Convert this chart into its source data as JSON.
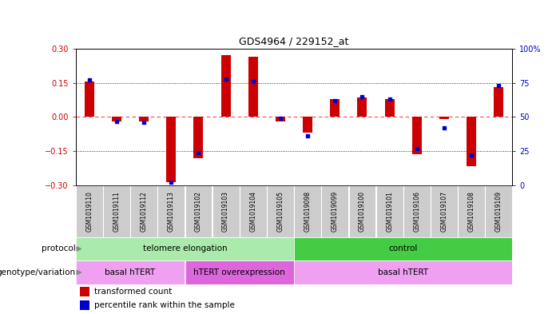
{
  "title": "GDS4964 / 229152_at",
  "samples": [
    "GSM1019110",
    "GSM1019111",
    "GSM1019112",
    "GSM1019113",
    "GSM1019102",
    "GSM1019103",
    "GSM1019104",
    "GSM1019105",
    "GSM1019098",
    "GSM1019099",
    "GSM1019100",
    "GSM1019101",
    "GSM1019106",
    "GSM1019107",
    "GSM1019108",
    "GSM1019109"
  ],
  "bar_values": [
    0.155,
    -0.02,
    -0.02,
    -0.285,
    -0.18,
    0.27,
    0.265,
    -0.02,
    -0.07,
    0.08,
    0.085,
    0.08,
    -0.165,
    -0.01,
    -0.215,
    0.13
  ],
  "percentile_values": [
    77,
    47,
    46,
    2,
    24,
    78,
    76,
    49,
    36,
    62,
    65,
    63,
    27,
    42,
    22,
    73
  ],
  "ylim_left": [
    -0.3,
    0.3
  ],
  "ylim_right": [
    0,
    100
  ],
  "yticks_left": [
    -0.3,
    -0.15,
    0,
    0.15,
    0.3
  ],
  "yticks_right": [
    0,
    25,
    50,
    75,
    100
  ],
  "ytick_labels_right": [
    "0",
    "25",
    "50",
    "75",
    "100%"
  ],
  "hline_dotted_values": [
    0.15,
    -0.15
  ],
  "hline_zero_color": "#ff4444",
  "bar_color": "#cc0000",
  "dot_color": "#0000cc",
  "protocol_groups": [
    {
      "label": "telomere elongation",
      "start": 0,
      "end": 7,
      "color": "#aaeaaa"
    },
    {
      "label": "control",
      "start": 8,
      "end": 15,
      "color": "#44cc44"
    }
  ],
  "genotype_groups": [
    {
      "label": "basal hTERT",
      "start": 0,
      "end": 3,
      "color": "#f0a0f0"
    },
    {
      "label": "hTERT overexpression",
      "start": 4,
      "end": 7,
      "color": "#dd66dd"
    },
    {
      "label": "basal hTERT",
      "start": 8,
      "end": 15,
      "color": "#f0a0f0"
    }
  ],
  "legend_items": [
    {
      "color": "#cc0000",
      "label": "transformed count"
    },
    {
      "color": "#0000cc",
      "label": "percentile rank within the sample"
    }
  ],
  "bg_color": "#ffffff",
  "tick_label_color_left": "#cc0000",
  "tick_label_color_right": "#0000cc",
  "sample_bg_color": "#cccccc",
  "arrow_color": "#888888",
  "label_color_proto": "#333333",
  "figsize": [
    7.01,
    3.93
  ],
  "dpi": 100
}
